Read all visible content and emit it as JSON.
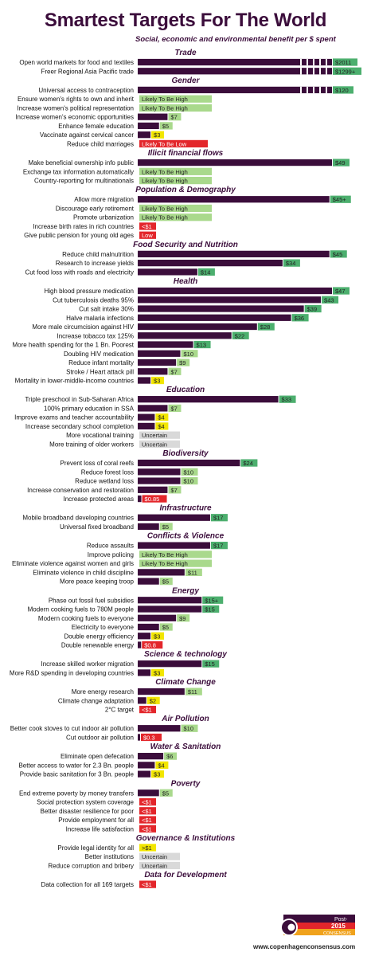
{
  "title": "Smartest Targets For The World",
  "subtitle": "Social, economic and environmental benefit per $ spent",
  "footer": {
    "url": "www.copenhagenconsensus.com",
    "logo_top": "Post-",
    "logo_year": "2015",
    "logo_bottom": "CONSENSUS",
    "logo_letter": "C"
  },
  "colors": {
    "bar": "#3b0d3b",
    "green": "#4caf6e",
    "lightgreen": "#a9d98c",
    "yellow": "#f2e600",
    "red": "#e3262b",
    "gray": "#d9d9d9",
    "category": "#3b0d3b"
  },
  "chart_data": {
    "type": "bar",
    "orientation": "horizontal",
    "sections": [
      {
        "name": "Trade",
        "items": [
          {
            "label": "Open world markets for food and textiles",
            "value": 2011,
            "tag": "$2011",
            "color": "green",
            "broken": true
          },
          {
            "label": "Freer Regional Asia Pacific trade",
            "value": 1299,
            "tag": "$1299+",
            "color": "green",
            "broken": true
          }
        ]
      },
      {
        "name": "Gender",
        "items": [
          {
            "label": "Universal access to contraception",
            "value": 120,
            "tag": "$120",
            "color": "green",
            "broken": true
          },
          {
            "label": "Ensure women's rights to own and inherit",
            "value": null,
            "tag": "Likely To Be High",
            "color": "lightgreen"
          },
          {
            "label": "Increase women's political representation",
            "value": null,
            "tag": "Likely To Be High",
            "color": "lightgreen"
          },
          {
            "label": "Increase women's economic opportunities",
            "value": 7,
            "tag": "$7",
            "color": "lightgreen"
          },
          {
            "label": "Enhance female education",
            "value": 5,
            "tag": "$5",
            "color": "lightgreen"
          },
          {
            "label": "Vaccinate against cervical cancer",
            "value": 3,
            "tag": "$3",
            "color": "yellow"
          },
          {
            "label": "Reduce child marriages",
            "value": null,
            "tag": "Likely To Be Low",
            "color": "red"
          }
        ]
      },
      {
        "name": "Illicit financial flows",
        "items": [
          {
            "label": "Make beneficial ownership info public",
            "value": 49,
            "tag": "$49",
            "color": "green"
          },
          {
            "label": "Exchange tax information automatically",
            "value": null,
            "tag": "Likely To Be High",
            "color": "lightgreen"
          },
          {
            "label": "Country-reporting for multinationals",
            "value": null,
            "tag": "Likely To Be High",
            "color": "lightgreen"
          }
        ]
      },
      {
        "name": "Population & Demography",
        "items": [
          {
            "label": "Allow more migration",
            "value": 45,
            "tag": "$45+",
            "color": "green"
          },
          {
            "label": "Discourage early retirement",
            "value": null,
            "tag": "Likely To Be High",
            "color": "lightgreen"
          },
          {
            "label": "Promote urbanization",
            "value": null,
            "tag": "Likely To Be High",
            "color": "lightgreen"
          },
          {
            "label": "Increase birth rates in rich countries",
            "value": null,
            "tag": "<$1",
            "color": "red"
          },
          {
            "label": "Give public pension for young old ages",
            "value": null,
            "tag": "Low",
            "color": "red"
          }
        ]
      },
      {
        "name": "Food Security and Nutrition",
        "items": [
          {
            "label": "Reduce child malnutrition",
            "value": 45,
            "tag": "$45",
            "color": "green"
          },
          {
            "label": "Research to increase yields",
            "value": 34,
            "tag": "$34",
            "color": "green"
          },
          {
            "label": "Cut food loss with roads and electricity",
            "value": 14,
            "tag": "$14",
            "color": "green"
          }
        ]
      },
      {
        "name": "Health",
        "items": [
          {
            "label": "High blood pressure medication",
            "value": 47,
            "tag": "$47",
            "color": "green"
          },
          {
            "label": "Cut tuberculosis deaths 95%",
            "value": 43,
            "tag": "$43",
            "color": "green"
          },
          {
            "label": "Cut salt intake 30%",
            "value": 39,
            "tag": "$39",
            "color": "green"
          },
          {
            "label": "Halve malaria infections",
            "value": 36,
            "tag": "$36",
            "color": "green"
          },
          {
            "label": "More male circumcision against HIV",
            "value": 28,
            "tag": "$28",
            "color": "green"
          },
          {
            "label": "Increase tobacco tax 125%",
            "value": 22,
            "tag": "$22",
            "color": "green"
          },
          {
            "label": "More health spending for the 1 Bn. Poorest",
            "value": 13,
            "tag": "$13",
            "color": "green"
          },
          {
            "label": "Doubling HIV medication",
            "value": 10,
            "tag": "$10",
            "color": "lightgreen"
          },
          {
            "label": "Reduce infant mortality",
            "value": 9,
            "tag": "$9",
            "color": "lightgreen"
          },
          {
            "label": "Stroke / Heart attack pill",
            "value": 7,
            "tag": "$7",
            "color": "lightgreen"
          },
          {
            "label": "Mortality in lower-middle-income countries",
            "value": 3,
            "tag": "$3",
            "color": "yellow"
          }
        ]
      },
      {
        "name": "Education",
        "items": [
          {
            "label": "Triple preschool in Sub-Saharan Africa",
            "value": 33,
            "tag": "$33",
            "color": "green"
          },
          {
            "label": "100% primary education in SSA",
            "value": 7,
            "tag": "$7",
            "color": "lightgreen"
          },
          {
            "label": "Improve exams and teacher accountability",
            "value": 4,
            "tag": "$4",
            "color": "yellow"
          },
          {
            "label": "Increase secondary school completion",
            "value": 4,
            "tag": "$4",
            "color": "yellow"
          },
          {
            "label": "More vocational training",
            "value": null,
            "tag": "Uncertain",
            "color": "gray"
          },
          {
            "label": "More training of older workers",
            "value": null,
            "tag": "Uncertain",
            "color": "gray"
          }
        ]
      },
      {
        "name": "Biodiversity",
        "items": [
          {
            "label": "Prevent loss of coral reefs",
            "value": 24,
            "tag": "$24",
            "color": "green"
          },
          {
            "label": "Reduce forest loss",
            "value": 10,
            "tag": "$10",
            "color": "lightgreen"
          },
          {
            "label": "Reduce wetland loss",
            "value": 10,
            "tag": "$10",
            "color": "lightgreen"
          },
          {
            "label": "Increase conservation and restoration",
            "value": 7,
            "tag": "$7",
            "color": "lightgreen"
          },
          {
            "label": "Increase protected areas",
            "value": 0.85,
            "tag": "$0.85",
            "color": "red"
          }
        ]
      },
      {
        "name": "Infrastructure",
        "items": [
          {
            "label": "Mobile broadband developing countries",
            "value": 17,
            "tag": "$17",
            "color": "green"
          },
          {
            "label": "Universal fixed broadband",
            "value": 5,
            "tag": "$5",
            "color": "lightgreen"
          }
        ]
      },
      {
        "name": "Conflicts & Violence",
        "items": [
          {
            "label": "Reduce assaults",
            "value": 17,
            "tag": "$17",
            "color": "green"
          },
          {
            "label": "Improve policing",
            "value": null,
            "tag": "Likely To Be High",
            "color": "lightgreen"
          },
          {
            "label": "Eliminate violence against women and girls",
            "value": null,
            "tag": "Likely To Be High",
            "color": "lightgreen"
          },
          {
            "label": "Eliminate violence in child discipline",
            "value": 11,
            "tag": "$11",
            "color": "lightgreen"
          },
          {
            "label": "More peace keeping troop",
            "value": 5,
            "tag": "$5",
            "color": "lightgreen"
          }
        ]
      },
      {
        "name": "Energy",
        "items": [
          {
            "label": "Phase out fossil fuel subsidies",
            "value": 15,
            "tag": "$15+",
            "color": "green"
          },
          {
            "label": "Modern cooking fuels to 780M people",
            "value": 15,
            "tag": "$15",
            "color": "green"
          },
          {
            "label": "Modern cooking fuels to everyone",
            "value": 9,
            "tag": "$9",
            "color": "lightgreen"
          },
          {
            "label": "Electricity to everyone",
            "value": 5,
            "tag": "$5",
            "color": "lightgreen"
          },
          {
            "label": "Double energy efficiency",
            "value": 3,
            "tag": "$3",
            "color": "yellow"
          },
          {
            "label": "Double renewable energy",
            "value": 0.8,
            "tag": "$0.8",
            "color": "red"
          }
        ]
      },
      {
        "name": "Science & technology",
        "items": [
          {
            "label": "Increase skilled worker migration",
            "value": 15,
            "tag": "$15",
            "color": "green"
          },
          {
            "label": "More R&D spending in developing countries",
            "value": 3,
            "tag": "$3",
            "color": "yellow"
          }
        ]
      },
      {
        "name": "Climate Change",
        "items": [
          {
            "label": "More energy research",
            "value": 11,
            "tag": "$11",
            "color": "lightgreen"
          },
          {
            "label": "Climate change adaptation",
            "value": 2,
            "tag": "$2",
            "color": "yellow"
          },
          {
            "label": "2°C target",
            "value": null,
            "tag": "<$1",
            "color": "red"
          }
        ]
      },
      {
        "name": "Air Pollution",
        "items": [
          {
            "label": "Better cook stoves to cut indoor air pollution",
            "value": 10,
            "tag": "$10",
            "color": "lightgreen"
          },
          {
            "label": "Cut outdoor air pollution",
            "value": 0.3,
            "tag": "$0.3",
            "color": "red"
          }
        ]
      },
      {
        "name": "Water & Sanitation",
        "items": [
          {
            "label": "Eliminate open defecation",
            "value": 6,
            "tag": "$6",
            "color": "lightgreen"
          },
          {
            "label": "Better access to water for 2.3 Bn. people",
            "value": 4,
            "tag": "$4",
            "color": "yellow"
          },
          {
            "label": "Provide basic sanitation for 3 Bn. people",
            "value": 3,
            "tag": "$3",
            "color": "yellow"
          }
        ]
      },
      {
        "name": "Poverty",
        "items": [
          {
            "label": "End extreme poverty by money transfers",
            "value": 5,
            "tag": "$5",
            "color": "lightgreen"
          },
          {
            "label": "Social protection system coverage",
            "value": null,
            "tag": "<$1",
            "color": "red"
          },
          {
            "label": "Better disaster resilience for poor",
            "value": null,
            "tag": "<$1",
            "color": "red"
          },
          {
            "label": "Provide employment for all",
            "value": null,
            "tag": "<$1",
            "color": "red"
          },
          {
            "label": "Increase life satisfaction",
            "value": null,
            "tag": "<$1",
            "color": "red"
          }
        ]
      },
      {
        "name": "Governance & Institutions",
        "items": [
          {
            "label": "Provide legal identity for all",
            "value": null,
            "tag": ">$1",
            "color": "yellow"
          },
          {
            "label": "Better institutions",
            "value": null,
            "tag": "Uncertain",
            "color": "gray"
          },
          {
            "label": "Reduce corruption and bribery",
            "value": null,
            "tag": "Uncertain",
            "color": "gray"
          }
        ]
      },
      {
        "name": "Data for Development",
        "items": [
          {
            "label": "Data collection for all 169 targets",
            "value": null,
            "tag": "<$1",
            "color": "red"
          }
        ]
      }
    ]
  }
}
